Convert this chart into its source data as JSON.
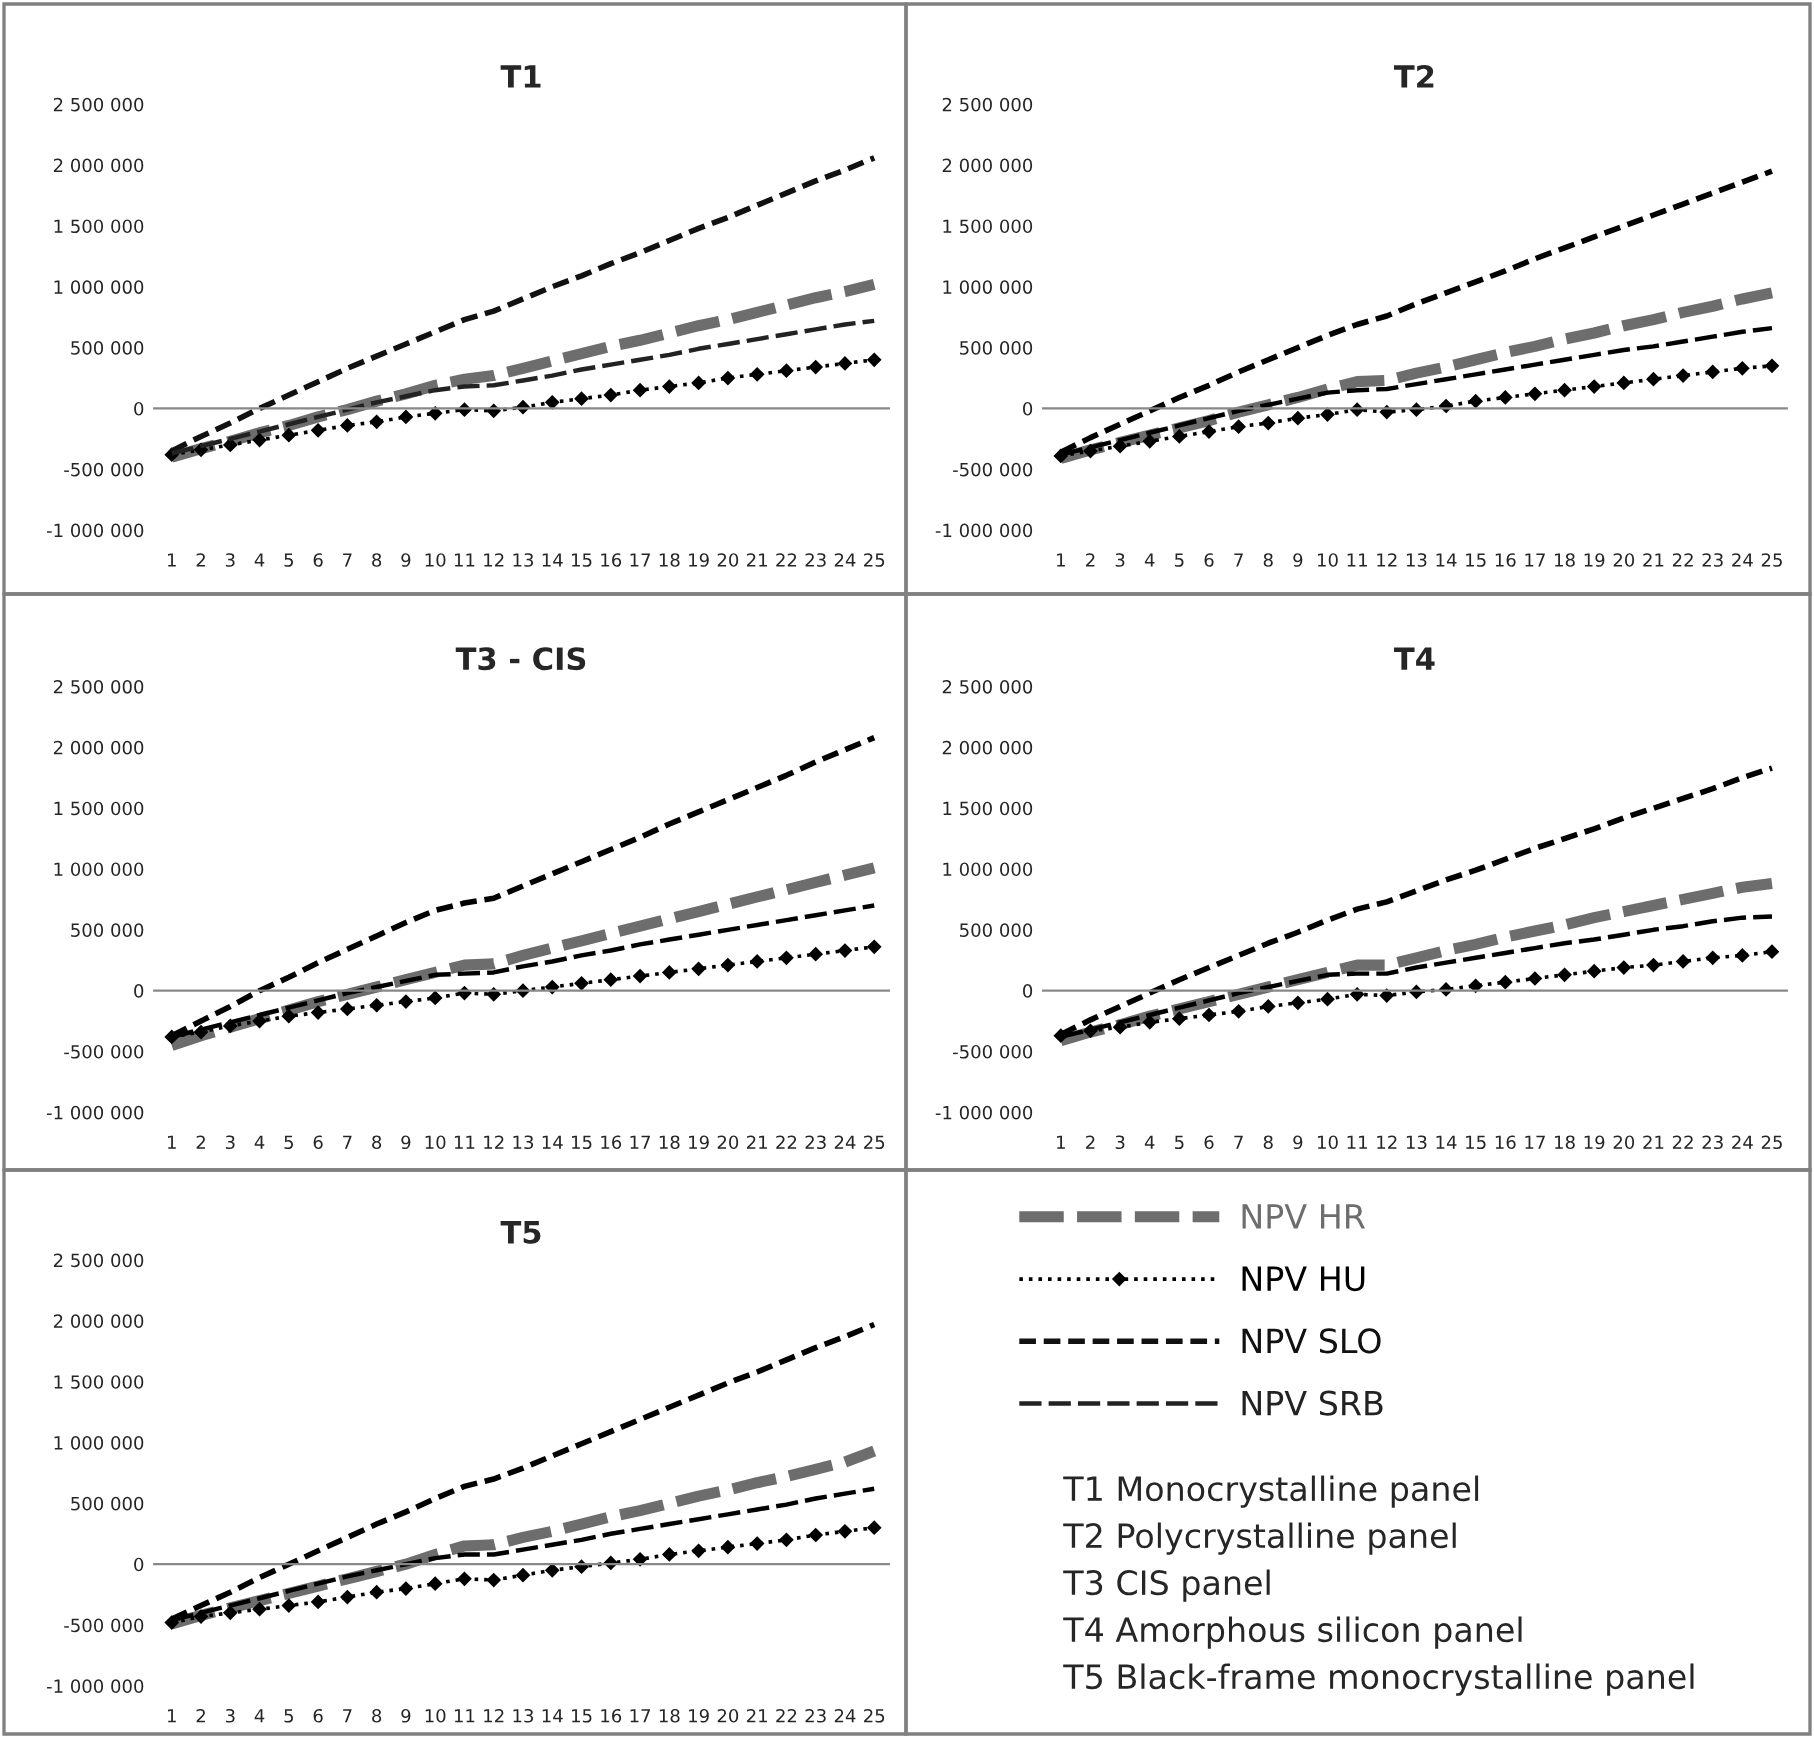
{
  "chart_data": [
    {
      "type": "line",
      "title": "T1",
      "categories": [
        "1",
        "2",
        "3",
        "4",
        "5",
        "6",
        "7",
        "8",
        "9",
        "10",
        "11",
        "12",
        "13",
        "14",
        "15",
        "16",
        "17",
        "18",
        "19",
        "20",
        "21",
        "22",
        "23",
        "24",
        "25"
      ],
      "ylim": [
        -1000000,
        2500000
      ],
      "yticks": [
        {
          "value": -1000000,
          "label": "-1 000 000"
        },
        {
          "value": -500000,
          "label": "-500 000"
        },
        0,
        {
          "value": 500000,
          "label": "500 000"
        },
        {
          "value": 1000000,
          "label": "1 000 000"
        },
        {
          "value": 1500000,
          "label": "1 500 000"
        },
        {
          "value": 2000000,
          "label": "2 000 000"
        },
        {
          "value": 2500000,
          "label": "2 500 000"
        }
      ],
      "legend": "bottom right",
      "series": [
        {
          "name": "NPV HR",
          "color": "#6d6d6d",
          "line_style": "dashed",
          "marker": "none",
          "values": [
            -400000,
            -330000,
            -270000,
            -200000,
            -140000,
            -70000,
            -10000,
            60000,
            120000,
            190000,
            240000,
            270000,
            330000,
            390000,
            450000,
            510000,
            560000,
            620000,
            680000,
            730000,
            790000,
            850000,
            910000,
            960000,
            1020000
          ]
        },
        {
          "name": "NPV HU",
          "color": "#000000",
          "line_style": "dotted",
          "marker": "diamond",
          "values": [
            -380000,
            -340000,
            -300000,
            -260000,
            -220000,
            -180000,
            -140000,
            -110000,
            -70000,
            -40000,
            -10000,
            -20000,
            10000,
            50000,
            80000,
            110000,
            150000,
            180000,
            210000,
            250000,
            280000,
            310000,
            340000,
            370000,
            400000
          ]
        },
        {
          "name": "NPV SLO",
          "color": "#111111",
          "line_style": "dashed",
          "marker": "none",
          "values": [
            -350000,
            -230000,
            -120000,
            0,
            110000,
            220000,
            330000,
            430000,
            530000,
            630000,
            730000,
            800000,
            900000,
            1000000,
            1090000,
            1190000,
            1280000,
            1380000,
            1480000,
            1570000,
            1670000,
            1770000,
            1870000,
            1960000,
            2060000
          ]
        },
        {
          "name": "NPV SRB",
          "color": "#222222",
          "line_style": "dashed",
          "marker": "none",
          "values": [
            -370000,
            -310000,
            -250000,
            -190000,
            -130000,
            -70000,
            -10000,
            50000,
            100000,
            150000,
            180000,
            190000,
            230000,
            270000,
            320000,
            360000,
            400000,
            440000,
            490000,
            530000,
            570000,
            610000,
            650000,
            690000,
            720000
          ]
        }
      ]
    },
    {
      "type": "line",
      "title": "T2",
      "categories": [
        "1",
        "2",
        "3",
        "4",
        "5",
        "6",
        "7",
        "8",
        "9",
        "10",
        "11",
        "12",
        "13",
        "14",
        "15",
        "16",
        "17",
        "18",
        "19",
        "20",
        "21",
        "22",
        "23",
        "24",
        "25"
      ],
      "ylim": [
        -1000000,
        2500000
      ],
      "yticks": [
        {
          "value": -1000000,
          "label": "-1 000 000"
        },
        {
          "value": -500000,
          "label": "-500 000"
        },
        0,
        {
          "value": 500000,
          "label": "500 000"
        },
        {
          "value": 1000000,
          "label": "1 000 000"
        },
        {
          "value": 1500000,
          "label": "1 500 000"
        },
        {
          "value": 2000000,
          "label": "2 000 000"
        },
        {
          "value": 2500000,
          "label": "2 500 000"
        }
      ],
      "series": [
        {
          "color": "#6d6d6d",
          "line_style": "dashed",
          "marker": "none",
          "values": [
            -410000,
            -340000,
            -280000,
            -220000,
            -160000,
            -100000,
            -30000,
            30000,
            90000,
            160000,
            220000,
            230000,
            290000,
            340000,
            400000,
            460000,
            510000,
            570000,
            620000,
            680000,
            730000,
            790000,
            840000,
            900000,
            950000
          ]
        },
        {
          "color": "#000000",
          "line_style": "dotted",
          "marker": "diamond",
          "values": [
            -390000,
            -350000,
            -310000,
            -270000,
            -230000,
            -190000,
            -150000,
            -120000,
            -80000,
            -50000,
            -10000,
            -30000,
            -10000,
            20000,
            60000,
            90000,
            120000,
            150000,
            180000,
            210000,
            240000,
            270000,
            300000,
            330000,
            350000
          ]
        },
        {
          "color": "#000000",
          "line_style": "dashed",
          "marker": "none",
          "values": [
            -360000,
            -240000,
            -130000,
            -20000,
            90000,
            190000,
            300000,
            400000,
            500000,
            600000,
            690000,
            760000,
            860000,
            950000,
            1040000,
            1130000,
            1230000,
            1320000,
            1410000,
            1500000,
            1590000,
            1680000,
            1770000,
            1860000,
            1950000
          ]
        },
        {
          "color": "#000000",
          "line_style": "dashed",
          "marker": "none",
          "values": [
            -380000,
            -320000,
            -260000,
            -200000,
            -140000,
            -80000,
            -20000,
            30000,
            80000,
            130000,
            150000,
            160000,
            200000,
            240000,
            280000,
            320000,
            360000,
            400000,
            440000,
            480000,
            510000,
            550000,
            590000,
            630000,
            660000
          ]
        }
      ]
    },
    {
      "type": "line",
      "title": "T3 - CIS",
      "categories": [
        "1",
        "2",
        "3",
        "4",
        "5",
        "6",
        "7",
        "8",
        "9",
        "10",
        "11",
        "12",
        "13",
        "14",
        "15",
        "16",
        "17",
        "18",
        "19",
        "20",
        "21",
        "22",
        "23",
        "24",
        "25"
      ],
      "ylim": [
        -1000000,
        2500000
      ],
      "yticks": [
        {
          "value": -1000000,
          "label": "-1 000 000"
        },
        {
          "value": -500000,
          "label": "-500 000"
        },
        0,
        {
          "value": 500000,
          "label": "500 000"
        },
        {
          "value": 1000000,
          "label": "1 000 000"
        },
        {
          "value": 1500000,
          "label": "1 500 000"
        },
        {
          "value": 2000000,
          "label": "2 000 000"
        },
        {
          "value": 2500000,
          "label": "2 500 000"
        }
      ],
      "series": [
        {
          "color": "#6d6d6d",
          "line_style": "dashed",
          "marker": "none",
          "values": [
            -450000,
            -370000,
            -300000,
            -230000,
            -160000,
            -90000,
            -30000,
            30000,
            90000,
            150000,
            210000,
            220000,
            290000,
            350000,
            410000,
            470000,
            530000,
            590000,
            650000,
            710000,
            770000,
            830000,
            890000,
            950000,
            1010000
          ]
        },
        {
          "color": "#000000",
          "line_style": "dotted",
          "marker": "diamond",
          "values": [
            -380000,
            -340000,
            -290000,
            -250000,
            -210000,
            -180000,
            -150000,
            -120000,
            -90000,
            -60000,
            -20000,
            -30000,
            0,
            30000,
            60000,
            90000,
            120000,
            150000,
            180000,
            210000,
            240000,
            270000,
            300000,
            330000,
            360000
          ]
        },
        {
          "color": "#000000",
          "line_style": "dashed",
          "marker": "none",
          "values": [
            -370000,
            -250000,
            -130000,
            0,
            110000,
            230000,
            340000,
            450000,
            560000,
            660000,
            720000,
            760000,
            860000,
            960000,
            1060000,
            1160000,
            1260000,
            1370000,
            1470000,
            1570000,
            1670000,
            1770000,
            1880000,
            1980000,
            2080000
          ]
        },
        {
          "color": "#000000",
          "line_style": "dashed",
          "marker": "none",
          "values": [
            -380000,
            -320000,
            -260000,
            -200000,
            -140000,
            -80000,
            -20000,
            30000,
            80000,
            130000,
            140000,
            150000,
            200000,
            240000,
            290000,
            330000,
            380000,
            420000,
            460000,
            500000,
            540000,
            580000,
            620000,
            660000,
            700000
          ]
        }
      ]
    },
    {
      "type": "line",
      "title": "T4",
      "categories": [
        "1",
        "2",
        "3",
        "4",
        "5",
        "6",
        "7",
        "8",
        "9",
        "10",
        "11",
        "12",
        "13",
        "14",
        "15",
        "16",
        "17",
        "18",
        "19",
        "20",
        "21",
        "22",
        "23",
        "24",
        "25"
      ],
      "ylim": [
        -1000000,
        2500000
      ],
      "yticks": [
        {
          "value": -1000000,
          "label": "-1 000 000"
        },
        {
          "value": -500000,
          "label": "-500 000"
        },
        0,
        {
          "value": 500000,
          "label": "500 000"
        },
        {
          "value": 1000000,
          "label": "1 000 000"
        },
        {
          "value": 1500000,
          "label": "1 500 000"
        },
        {
          "value": 2000000,
          "label": "2 000 000"
        },
        {
          "value": 2500000,
          "label": "2 500 000"
        }
      ],
      "series": [
        {
          "color": "#6d6d6d",
          "line_style": "dashed",
          "marker": "none",
          "values": [
            -410000,
            -340000,
            -280000,
            -210000,
            -150000,
            -90000,
            -30000,
            30000,
            90000,
            150000,
            210000,
            210000,
            270000,
            330000,
            380000,
            440000,
            490000,
            540000,
            600000,
            650000,
            700000,
            750000,
            800000,
            850000,
            880000
          ]
        },
        {
          "color": "#000000",
          "line_style": "dotted",
          "marker": "diamond",
          "values": [
            -370000,
            -330000,
            -300000,
            -260000,
            -230000,
            -200000,
            -170000,
            -130000,
            -100000,
            -70000,
            -30000,
            -40000,
            -10000,
            10000,
            40000,
            70000,
            100000,
            130000,
            160000,
            190000,
            210000,
            240000,
            270000,
            290000,
            320000
          ]
        },
        {
          "color": "#000000",
          "line_style": "dashed",
          "marker": "none",
          "values": [
            -360000,
            -240000,
            -130000,
            -20000,
            90000,
            190000,
            290000,
            390000,
            480000,
            580000,
            670000,
            730000,
            820000,
            910000,
            990000,
            1080000,
            1170000,
            1250000,
            1330000,
            1420000,
            1500000,
            1580000,
            1660000,
            1750000,
            1830000
          ]
        },
        {
          "color": "#000000",
          "line_style": "dashed",
          "marker": "none",
          "values": [
            -380000,
            -320000,
            -260000,
            -200000,
            -140000,
            -80000,
            -20000,
            30000,
            80000,
            130000,
            140000,
            140000,
            190000,
            230000,
            270000,
            310000,
            350000,
            390000,
            420000,
            460000,
            500000,
            530000,
            570000,
            600000,
            610000
          ]
        }
      ]
    },
    {
      "type": "line",
      "title": "T5",
      "categories": [
        "1",
        "2",
        "3",
        "4",
        "5",
        "6",
        "7",
        "8",
        "9",
        "10",
        "11",
        "12",
        "13",
        "14",
        "15",
        "16",
        "17",
        "18",
        "19",
        "20",
        "21",
        "22",
        "23",
        "24",
        "25"
      ],
      "ylim": [
        -1000000,
        2500000
      ],
      "yticks": [
        {
          "value": -1000000,
          "label": "-1 000 000"
        },
        {
          "value": -500000,
          "label": "-500 000"
        },
        0,
        {
          "value": 500000,
          "label": "500 000"
        },
        {
          "value": 1000000,
          "label": "1 000 000"
        },
        {
          "value": 1500000,
          "label": "1 500 000"
        },
        {
          "value": 2000000,
          "label": "2 000 000"
        },
        {
          "value": 2500000,
          "label": "2 500 000"
        }
      ],
      "series": [
        {
          "color": "#6d6d6d",
          "line_style": "dashed",
          "marker": "none",
          "values": [
            -490000,
            -420000,
            -360000,
            -300000,
            -240000,
            -180000,
            -120000,
            -60000,
            0,
            80000,
            150000,
            160000,
            220000,
            270000,
            330000,
            390000,
            440000,
            500000,
            560000,
            610000,
            670000,
            720000,
            780000,
            840000,
            930000
          ]
        },
        {
          "color": "#000000",
          "line_style": "dotted",
          "marker": "diamond",
          "values": [
            -480000,
            -430000,
            -400000,
            -370000,
            -340000,
            -310000,
            -270000,
            -230000,
            -200000,
            -160000,
            -120000,
            -130000,
            -90000,
            -50000,
            -20000,
            10000,
            40000,
            80000,
            110000,
            140000,
            170000,
            200000,
            240000,
            270000,
            300000
          ]
        },
        {
          "color": "#000000",
          "line_style": "dashed",
          "marker": "none",
          "values": [
            -450000,
            -340000,
            -230000,
            -110000,
            0,
            110000,
            220000,
            330000,
            430000,
            540000,
            640000,
            700000,
            790000,
            890000,
            990000,
            1090000,
            1190000,
            1290000,
            1390000,
            1490000,
            1580000,
            1680000,
            1780000,
            1870000,
            1970000
          ]
        },
        {
          "color": "#000000",
          "line_style": "dashed",
          "marker": "none",
          "values": [
            -460000,
            -400000,
            -340000,
            -280000,
            -220000,
            -160000,
            -100000,
            -50000,
            0,
            50000,
            80000,
            80000,
            120000,
            160000,
            200000,
            250000,
            290000,
            330000,
            370000,
            410000,
            450000,
            490000,
            540000,
            580000,
            620000
          ]
        }
      ]
    },
    {
      "type": "other",
      "annotations": [
        "T1 Monocrystalline panel",
        "T2 Polycrystalline panel",
        "T3 CIS panel",
        "T4 Amorphous silicon panel",
        "T5 Black-frame monocrystalline panel"
      ]
    }
  ]
}
